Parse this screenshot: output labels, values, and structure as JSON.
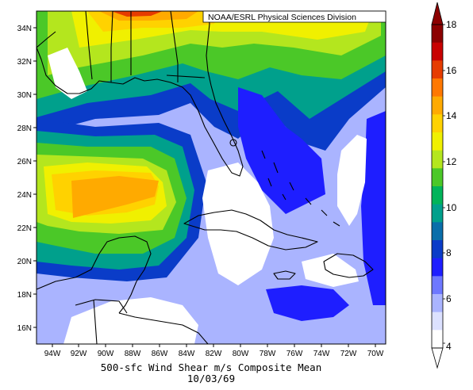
{
  "map": {
    "credit": "NOAA/ESRL Physical Sciences Division",
    "caption_line1": "500-sfc Wind Shear m/s Composite Mean",
    "caption_line2": "10/03/69",
    "lat_labels": [
      "34N",
      "32N",
      "30N",
      "28N",
      "26N",
      "24N",
      "22N",
      "20N",
      "18N",
      "16N"
    ],
    "lon_labels": [
      "94W",
      "92W",
      "90W",
      "88W",
      "86W",
      "84W",
      "82W",
      "80W",
      "78W",
      "76W",
      "74W",
      "72W",
      "70W"
    ]
  },
  "colorbar": {
    "labels": [
      "18",
      "16",
      "14",
      "12",
      "10",
      "8",
      "6",
      "4"
    ],
    "colors": [
      "#8c0000",
      "#c80000",
      "#e63c00",
      "#ff7800",
      "#ffaa00",
      "#ffd200",
      "#f0f000",
      "#b4e61e",
      "#4bc828",
      "#00b45a",
      "#00a08c",
      "#0a6eaa",
      "#0a3cc8",
      "#1e1eff",
      "#6e78ff",
      "#aab4ff",
      "#dce1ff",
      "#ffffff"
    ]
  }
}
